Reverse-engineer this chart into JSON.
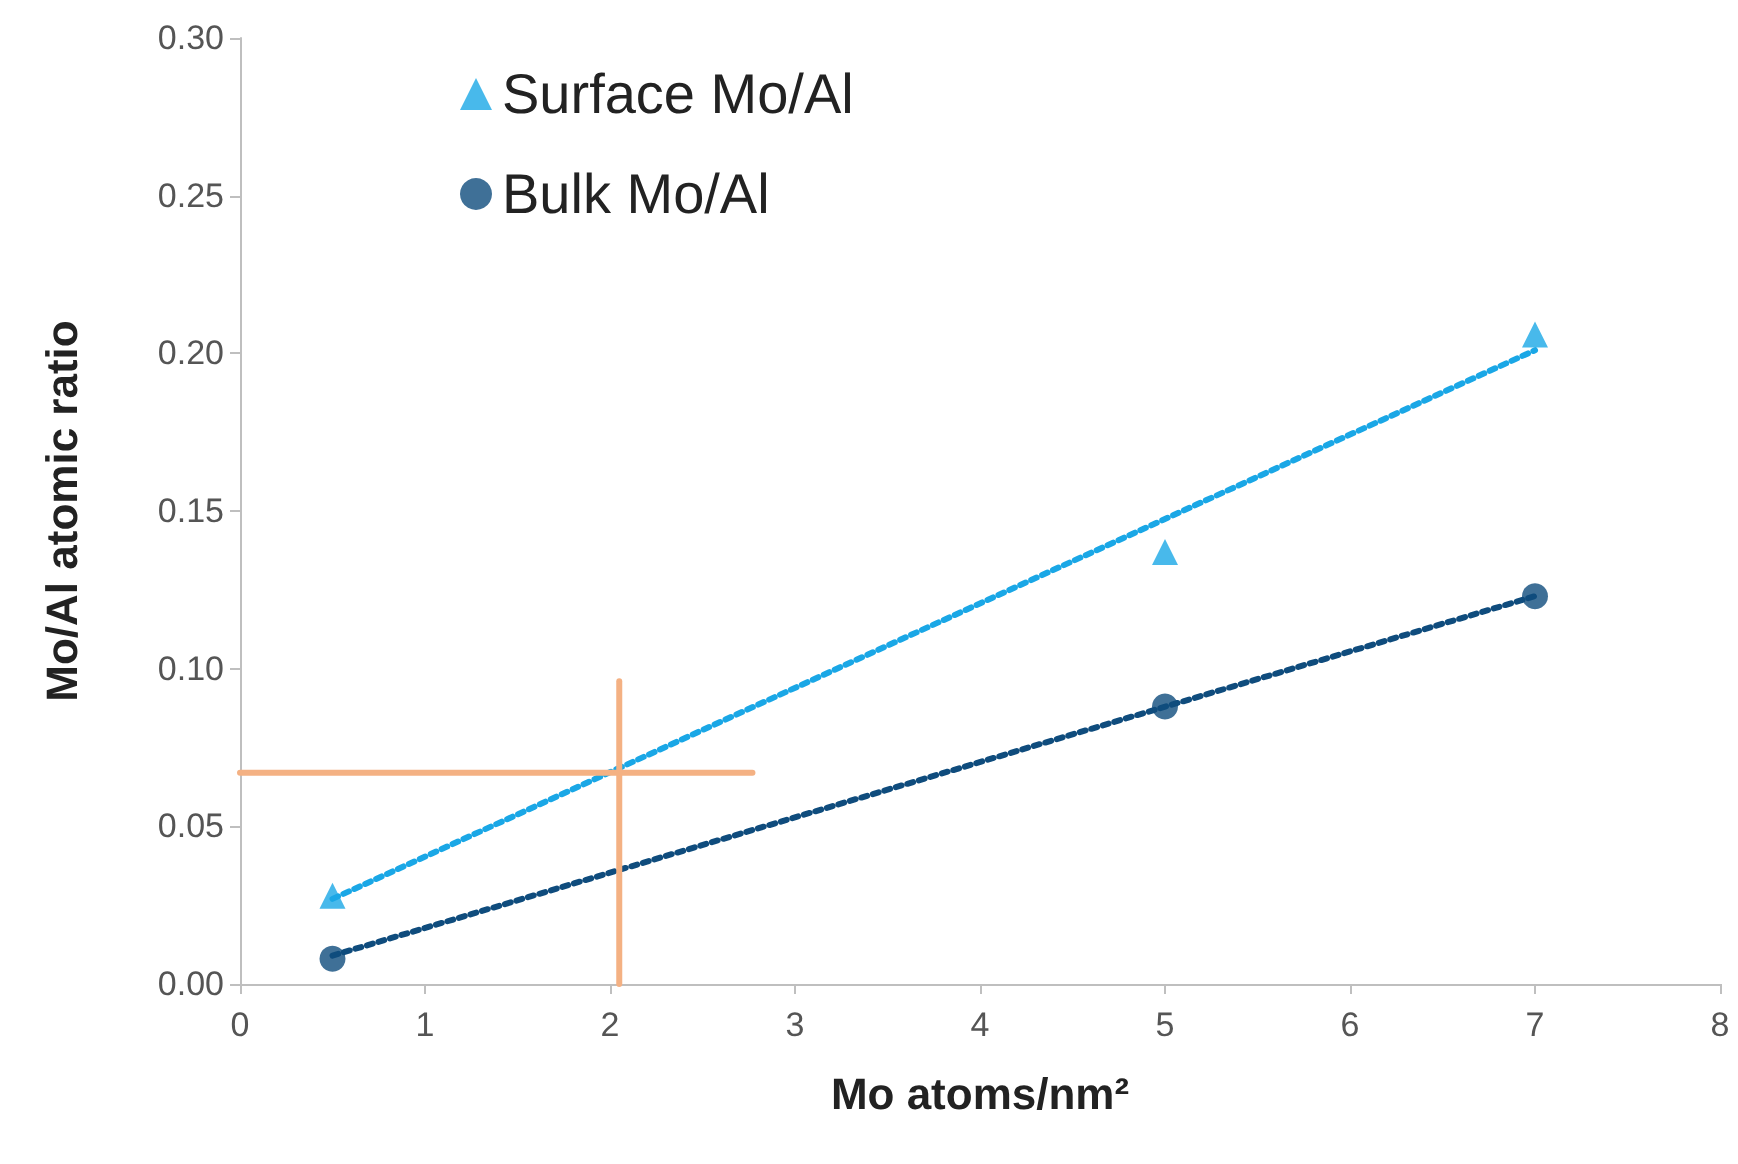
{
  "chart_data": {
    "type": "scatter",
    "xlabel": "Mo atoms/nm²",
    "ylabel": "Mo/Al atomic ratio",
    "xlim": [
      0,
      8
    ],
    "xticks": [
      0,
      1,
      2,
      3,
      4,
      5,
      6,
      7,
      8
    ],
    "ylim": [
      0,
      0.3
    ],
    "yticks": [
      {
        "value": 0,
        "label": "0.00"
      },
      {
        "value": 0.05,
        "label": "0.05"
      },
      {
        "value": 0.1,
        "label": "0.10"
      },
      {
        "value": 0.15,
        "label": "0.15"
      },
      {
        "value": 0.2,
        "label": "0.20"
      },
      {
        "value": 0.25,
        "label": "0.25"
      },
      {
        "value": 0.3,
        "label": "0.30"
      }
    ],
    "grid": false,
    "legend": "top left",
    "series": [
      {
        "name": "Surface Mo/Al",
        "marker": "triangle",
        "color": "#1aa7e6",
        "x": [
          0.5,
          5,
          7
        ],
        "values": [
          0.028,
          0.137,
          0.206
        ]
      },
      {
        "name": "Bulk Mo/Al",
        "marker": "circle",
        "color": "#0f4c7d",
        "x": [
          0.5,
          5,
          7
        ],
        "values": [
          0.008,
          0.088,
          0.123
        ]
      },
      {
        "type": "line",
        "line_style": "dotted",
        "marker": "none",
        "color": "#1aa7e6",
        "x": [
          0.5,
          7
        ],
        "values": [
          0.027,
          0.201
        ]
      },
      {
        "type": "line",
        "line_style": "dotted",
        "marker": "none",
        "color": "#0f4c7d",
        "x": [
          0.5,
          7
        ],
        "values": [
          0.009,
          0.123
        ]
      },
      {
        "type": "line",
        "line_style": "solid",
        "marker": "none",
        "color": "#f4b183",
        "x": [
          2.05,
          2.05
        ],
        "values": [
          0,
          0.096
        ]
      },
      {
        "type": "line",
        "line_style": "solid",
        "marker": "none",
        "color": "#f4b183",
        "x": [
          0,
          2.77
        ],
        "values": [
          0.067,
          0.067
        ]
      }
    ]
  }
}
